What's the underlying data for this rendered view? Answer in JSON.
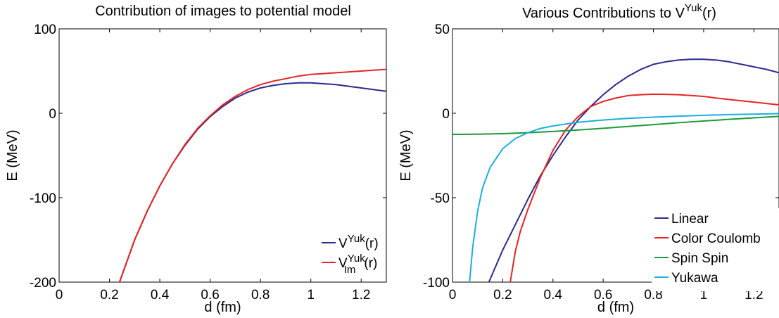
{
  "chart_data": [
    {
      "type": "line",
      "title": "Contribution of images to potential model",
      "xlabel": "d (fm)",
      "ylabel": "E (MeV)",
      "xlim": [
        0,
        1.3
      ],
      "ylim": [
        -200,
        100
      ],
      "xticks": [
        0,
        0.2,
        0.4,
        0.6,
        0.8,
        1,
        1.2
      ],
      "xtick_labels": [
        "0",
        "0.2",
        "0.4",
        "0.6",
        "0.8",
        "1",
        "1.2"
      ],
      "yticks": [
        -200,
        -100,
        0,
        100
      ],
      "ytick_labels": [
        "-200",
        "-100",
        "0",
        "100"
      ],
      "legend_position": "bottom-right",
      "series": [
        {
          "legend": {
            "base": "V",
            "sup": "Yuk",
            "sub": "",
            "tail": "(r)"
          },
          "color": "#2b2b8c",
          "x": [
            0.24,
            0.3,
            0.35,
            0.4,
            0.45,
            0.5,
            0.55,
            0.6,
            0.65,
            0.7,
            0.75,
            0.8,
            0.85,
            0.9,
            0.95,
            1.0,
            1.05,
            1.1,
            1.15,
            1.2,
            1.25,
            1.3
          ],
          "y": [
            -200,
            -150,
            -116,
            -86,
            -60,
            -38,
            -19,
            -4,
            8,
            18,
            25,
            30,
            33,
            35,
            36,
            36,
            35,
            34,
            32,
            30,
            28,
            26
          ]
        },
        {
          "legend": {
            "base": "V",
            "sup": "Yuk",
            "sub": "Im",
            "tail": "(r)"
          },
          "color": "#e52424",
          "x": [
            0.24,
            0.3,
            0.35,
            0.4,
            0.45,
            0.5,
            0.55,
            0.6,
            0.65,
            0.7,
            0.75,
            0.8,
            0.85,
            0.9,
            0.95,
            1.0,
            1.05,
            1.1,
            1.15,
            1.2,
            1.25,
            1.3
          ],
          "y": [
            -200,
            -150,
            -116,
            -86,
            -60,
            -37,
            -18,
            -3,
            10,
            20,
            28,
            34,
            38,
            41,
            44,
            46,
            47,
            48,
            49,
            50,
            51,
            52
          ]
        }
      ]
    },
    {
      "type": "line",
      "title_parts": {
        "base": "Various Contributions to V",
        "sup": "Yuk",
        "tail": "(r)"
      },
      "xlabel": "d (fm)",
      "ylabel": "E (MeV)",
      "xlim": [
        0,
        1.3
      ],
      "ylim": [
        -100,
        50
      ],
      "xticks": [
        0,
        0.2,
        0.4,
        0.6,
        0.8,
        1,
        1.2
      ],
      "xtick_labels": [
        "0",
        "0.2",
        "0.4",
        "0.6",
        "0.8",
        "1",
        "1.2"
      ],
      "yticks": [
        -100,
        -50,
        0,
        50
      ],
      "ytick_labels": [
        "-100",
        "-50",
        "0",
        "50"
      ],
      "legend_position": "bottom-right",
      "series": [
        {
          "name": "Linear",
          "color": "#2b2b8c",
          "x": [
            0.145,
            0.2,
            0.25,
            0.3,
            0.35,
            0.4,
            0.45,
            0.5,
            0.55,
            0.6,
            0.65,
            0.7,
            0.75,
            0.8,
            0.85,
            0.9,
            0.95,
            1.0,
            1.05,
            1.1,
            1.15,
            1.2,
            1.25,
            1.3
          ],
          "y": [
            -100,
            -81,
            -66,
            -51,
            -37,
            -25,
            -14,
            -4,
            4,
            11,
            17,
            22,
            26,
            29,
            30.5,
            31.5,
            32,
            32,
            31.5,
            30.5,
            29,
            27.5,
            26,
            24
          ]
        },
        {
          "name": "Color Coulomb",
          "color": "#e52424",
          "x": [
            0.23,
            0.25,
            0.27,
            0.3,
            0.35,
            0.4,
            0.45,
            0.5,
            0.55,
            0.6,
            0.65,
            0.7,
            0.75,
            0.8,
            0.85,
            0.9,
            0.95,
            1.0,
            1.05,
            1.1,
            1.15,
            1.2,
            1.25,
            1.3
          ],
          "y": [
            -100,
            -82,
            -70,
            -57,
            -38,
            -22,
            -10,
            -2,
            4,
            7,
            9,
            10.5,
            11,
            11.3,
            11.2,
            11,
            10.5,
            10,
            9,
            8.2,
            7.4,
            6.6,
            5.8,
            5
          ]
        },
        {
          "name": "Spin Spin",
          "color": "#1a9a3a",
          "x": [
            0,
            0.1,
            0.2,
            0.3,
            0.4,
            0.5,
            0.6,
            0.7,
            0.8,
            0.9,
            1.0,
            1.1,
            1.2,
            1.3
          ],
          "y": [
            -12.5,
            -12.4,
            -12.1,
            -11.5,
            -10.8,
            -9.9,
            -8.9,
            -7.8,
            -6.7,
            -5.6,
            -4.6,
            -3.6,
            -2.7,
            -1.8
          ]
        },
        {
          "name": "Yukawa",
          "color": "#1aaee0",
          "x": [
            0.068,
            0.08,
            0.1,
            0.12,
            0.15,
            0.2,
            0.25,
            0.3,
            0.35,
            0.4,
            0.5,
            0.6,
            0.7,
            0.8,
            0.9,
            1.0,
            1.1,
            1.2,
            1.3
          ],
          "y": [
            -100,
            -80,
            -58,
            -44,
            -32,
            -21,
            -15,
            -11.5,
            -9,
            -7.5,
            -5.3,
            -4,
            -3,
            -2.3,
            -1.7,
            -1.2,
            -0.8,
            -0.5,
            -0.2
          ]
        }
      ]
    }
  ]
}
